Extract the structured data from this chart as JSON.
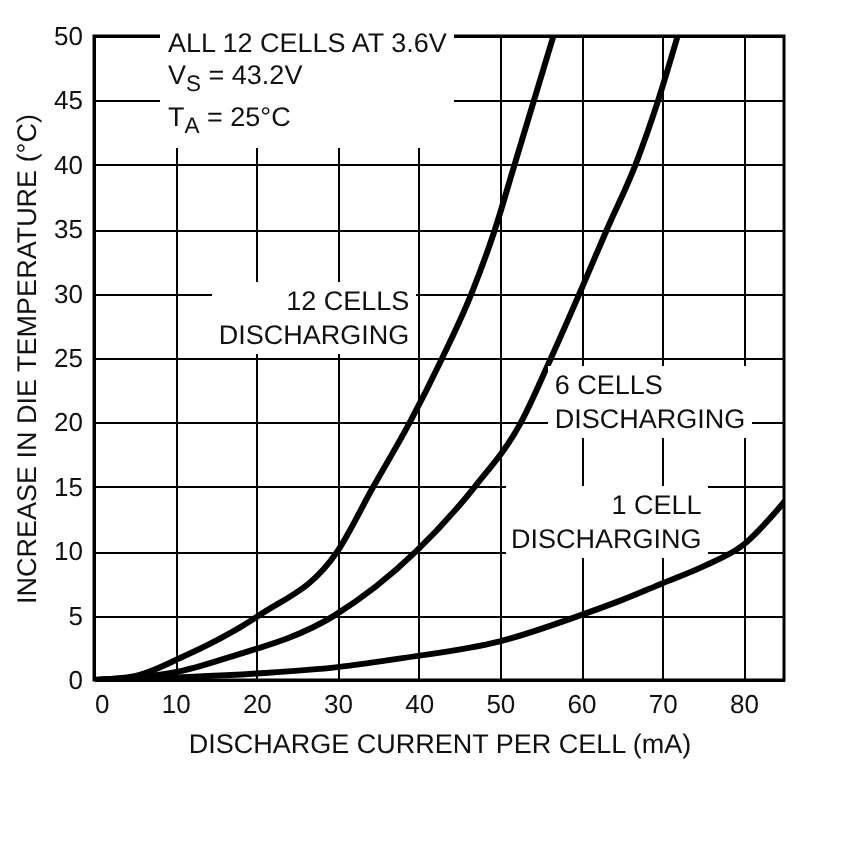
{
  "chart_data": {
    "type": "line",
    "xlabel": "DISCHARGE CURRENT PER CELL (mA)",
    "ylabel": "INCREASE IN DIE TEMPERATURE (°C)",
    "annotations": [
      "ALL 12 CELLS AT 3.6V",
      "V$_{S}$ = 43.2V",
      "T$_{A}$ = 25°C"
    ],
    "xlim": [
      0,
      85
    ],
    "ylim": [
      0,
      50
    ],
    "xticks": [
      0,
      10,
      20,
      30,
      40,
      50,
      60,
      70,
      80
    ],
    "yticks": [
      0,
      5,
      10,
      15,
      20,
      25,
      30,
      35,
      40,
      45,
      50
    ],
    "grid": true,
    "marker": "none",
    "line_style": "solid",
    "series": [
      {
        "name": "12 CELLS DISCHARGING",
        "color": "#000000",
        "x": [
          0,
          5,
          10.6,
          20.3,
          30,
          34.4,
          38.9,
          42.9,
          46.5,
          49.4,
          51.8,
          54.2,
          56.6
        ],
        "values": [
          0,
          0.3,
          1.7,
          5,
          10,
          15,
          20,
          25,
          30,
          35,
          40,
          45,
          50
        ]
      },
      {
        "name": "6 CELLS DISCHARGING",
        "color": "#000000",
        "x": [
          0,
          10,
          16.3,
          29.6,
          39.7,
          46.9,
          52.6,
          56.3,
          59.8,
          63.2,
          66.7,
          69.5,
          71.9
        ],
        "values": [
          0,
          0.6,
          1.7,
          5,
          10,
          15,
          20,
          25,
          30,
          35,
          40,
          45,
          50
        ]
      },
      {
        "name": "1 CELL DISCHARGING",
        "color": "#000000",
        "x": [
          0,
          20,
          30,
          38,
          50,
          59.8,
          65,
          70,
          75,
          80,
          85
        ],
        "values": [
          0,
          0.5,
          1,
          1.7,
          3,
          5,
          6.2,
          7.5,
          8.8,
          10.5,
          13.8
        ]
      }
    ]
  }
}
